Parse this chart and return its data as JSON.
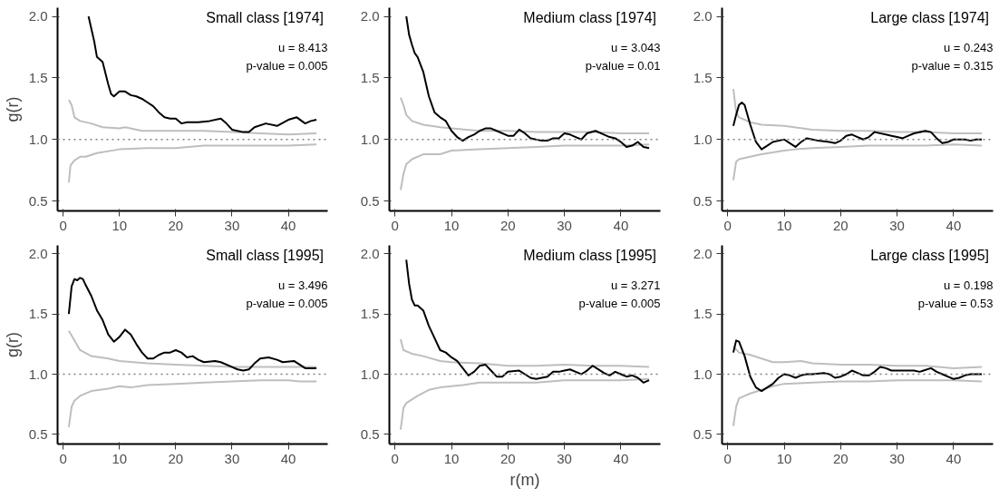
{
  "chart_data": [
    {
      "type": "line",
      "title": "Small class  [1974]",
      "ylabel": "g(r)",
      "annotations": [
        "u = 8.413",
        "p-value = 0.005"
      ],
      "xlim": [
        -1,
        47
      ],
      "ylim": [
        0.42,
        2.07
      ],
      "xticks": [
        0,
        10,
        20,
        30,
        40
      ],
      "yticks": [
        {
          "value": 0.5,
          "label": "0.5"
        },
        {
          "value": 1,
          "label": "1.0"
        },
        {
          "value": 1.5,
          "label": "1.5"
        },
        {
          "value": 2,
          "label": "2.0"
        }
      ],
      "ref_lines": [
        {
          "axis": "y",
          "value": 1,
          "color": "#808080",
          "line_style": "dotted"
        }
      ],
      "series": [
        {
          "color": "#bebebe",
          "x": [
            1,
            1.5,
            2,
            3,
            5,
            7,
            10,
            11,
            14,
            20,
            25,
            30,
            35,
            40,
            45
          ],
          "values": [
            1.32,
            1.28,
            1.18,
            1.15,
            1.13,
            1.1,
            1.09,
            1.1,
            1.07,
            1.07,
            1.07,
            1.06,
            1.05,
            1.04,
            1.05
          ]
        },
        {
          "color": "#bebebe",
          "x": [
            1,
            1.3,
            2,
            3,
            4,
            6,
            10,
            15,
            20,
            25,
            30,
            35,
            40,
            45
          ],
          "values": [
            0.65,
            0.79,
            0.83,
            0.86,
            0.86,
            0.89,
            0.92,
            0.93,
            0.93,
            0.95,
            0.95,
            0.95,
            0.95,
            0.96
          ]
        },
        {
          "color": "#000000",
          "x": [
            4.5,
            5.5,
            6,
            7,
            8,
            8.5,
            9,
            10,
            11,
            12,
            13,
            14,
            15,
            16,
            17,
            18,
            19,
            20,
            21,
            22,
            24,
            26,
            28,
            29,
            30,
            32,
            33,
            34,
            36,
            38,
            40,
            41.5,
            43,
            44,
            45
          ],
          "values": [
            2.0,
            1.8,
            1.67,
            1.63,
            1.45,
            1.37,
            1.35,
            1.39,
            1.39,
            1.36,
            1.35,
            1.33,
            1.3,
            1.27,
            1.22,
            1.18,
            1.17,
            1.17,
            1.13,
            1.14,
            1.14,
            1.15,
            1.17,
            1.13,
            1.08,
            1.06,
            1.06,
            1.1,
            1.13,
            1.11,
            1.16,
            1.18,
            1.13,
            1.15,
            1.16
          ]
        }
      ]
    },
    {
      "type": "line",
      "title": "Medium class  [1974]",
      "annotations": [
        "u = 3.043",
        "p-value = 0.01"
      ],
      "xlim": [
        -1,
        47
      ],
      "ylim": [
        0.42,
        2.07
      ],
      "xticks": [
        0,
        10,
        20,
        30,
        40
      ],
      "yticks": [
        {
          "value": 0.5,
          "label": "0.5"
        },
        {
          "value": 1,
          "label": "1.0"
        },
        {
          "value": 1.5,
          "label": "1.5"
        },
        {
          "value": 2,
          "label": "2.0"
        }
      ],
      "ref_lines": [
        {
          "axis": "y",
          "value": 1,
          "color": "#808080",
          "line_style": "dotted"
        }
      ],
      "series": [
        {
          "color": "#bebebe",
          "x": [
            1,
            1.5,
            2,
            3,
            5,
            8,
            10,
            15,
            20,
            25,
            30,
            35,
            40,
            45
          ],
          "values": [
            1.34,
            1.28,
            1.2,
            1.15,
            1.12,
            1.1,
            1.09,
            1.07,
            1.07,
            1.06,
            1.06,
            1.06,
            1.05,
            1.05
          ]
        },
        {
          "color": "#bebebe",
          "x": [
            1,
            1.5,
            2,
            3,
            5,
            8,
            10,
            15,
            20,
            25,
            30,
            35,
            40,
            45
          ],
          "values": [
            0.59,
            0.72,
            0.8,
            0.84,
            0.88,
            0.88,
            0.91,
            0.92,
            0.93,
            0.94,
            0.95,
            0.95,
            0.95,
            0.96
          ]
        },
        {
          "color": "#000000",
          "x": [
            2,
            2.5,
            3,
            3.5,
            4,
            5,
            6,
            7,
            8,
            9,
            10,
            11,
            12,
            13,
            14,
            15,
            16,
            17,
            18,
            20,
            21,
            22,
            23,
            24,
            26,
            27,
            28,
            29,
            30,
            31,
            32,
            33,
            34,
            35.5,
            37,
            38,
            39,
            40,
            41,
            42,
            43,
            44,
            45
          ],
          "values": [
            2.0,
            1.85,
            1.77,
            1.7,
            1.67,
            1.55,
            1.35,
            1.22,
            1.18,
            1.15,
            1.07,
            1.02,
            0.99,
            1.02,
            1.04,
            1.07,
            1.09,
            1.09,
            1.07,
            1.03,
            1.03,
            1.08,
            1.05,
            1.01,
            0.99,
            0.99,
            1.01,
            1.01,
            1.05,
            1.04,
            1.02,
            1.0,
            1.05,
            1.07,
            1.04,
            1.02,
            1.01,
            0.98,
            0.94,
            0.95,
            0.98,
            0.94,
            0.93
          ]
        }
      ]
    },
    {
      "type": "line",
      "title": "Large class  [1974]",
      "annotations": [
        "u = 0.243",
        "p-value = 0.315"
      ],
      "xlim": [
        -1,
        47
      ],
      "ylim": [
        0.42,
        2.07
      ],
      "xticks": [
        0,
        10,
        20,
        30,
        40
      ],
      "yticks": [
        {
          "value": 0.5,
          "label": "0.5"
        },
        {
          "value": 1,
          "label": "1.0"
        },
        {
          "value": 1.5,
          "label": "1.5"
        },
        {
          "value": 2,
          "label": "2.0"
        }
      ],
      "ref_lines": [
        {
          "axis": "y",
          "value": 1,
          "color": "#808080",
          "line_style": "dotted"
        }
      ],
      "series": [
        {
          "color": "#bebebe",
          "x": [
            1,
            1.5,
            2,
            4,
            6,
            10,
            15,
            20,
            25,
            30,
            35,
            40,
            45
          ],
          "values": [
            1.41,
            1.22,
            1.18,
            1.14,
            1.12,
            1.11,
            1.08,
            1.07,
            1.07,
            1.06,
            1.06,
            1.05,
            1.05
          ]
        },
        {
          "color": "#bebebe",
          "x": [
            1,
            1.5,
            2,
            4,
            6,
            10,
            12,
            15,
            20,
            25,
            30,
            35,
            40,
            45
          ],
          "values": [
            0.67,
            0.82,
            0.84,
            0.86,
            0.88,
            0.91,
            0.92,
            0.93,
            0.94,
            0.95,
            0.95,
            0.95,
            0.96,
            0.95
          ]
        },
        {
          "color": "#000000",
          "x": [
            1,
            1.5,
            2,
            2.5,
            3,
            4,
            5,
            6,
            7,
            8,
            9,
            10,
            11,
            12,
            13,
            14,
            15,
            16,
            18,
            19,
            20,
            21,
            22,
            23,
            24,
            25,
            26,
            28,
            29,
            30,
            31,
            32,
            33,
            35,
            36,
            37,
            38,
            39,
            40,
            42,
            43,
            44,
            45
          ],
          "values": [
            1.11,
            1.2,
            1.28,
            1.3,
            1.28,
            1.12,
            0.98,
            0.92,
            0.95,
            0.98,
            0.99,
            1.0,
            0.97,
            0.94,
            0.98,
            1.01,
            1.0,
            0.99,
            0.98,
            0.97,
            0.99,
            1.03,
            1.04,
            1.02,
            1.0,
            1.02,
            1.06,
            1.04,
            1.03,
            1.02,
            1.01,
            1.03,
            1.05,
            1.07,
            1.06,
            1.01,
            0.97,
            0.98,
            1.0,
            1.0,
            0.99,
            1.0,
            1.0
          ]
        }
      ]
    },
    {
      "type": "line",
      "title": "Small class  [1995]",
      "ylabel": "g(r)",
      "annotations": [
        "u = 3.496",
        "p-value = 0.005"
      ],
      "xlim": [
        -1,
        47
      ],
      "ylim": [
        0.42,
        2.07
      ],
      "xticks": [
        0,
        10,
        20,
        30,
        40
      ],
      "yticks": [
        {
          "value": 0.5,
          "label": "0.5"
        },
        {
          "value": 1,
          "label": "1.0"
        },
        {
          "value": 1.5,
          "label": "1.5"
        },
        {
          "value": 2,
          "label": "2.0"
        }
      ],
      "ref_lines": [
        {
          "axis": "y",
          "value": 1,
          "color": "#808080",
          "line_style": "dotted"
        }
      ],
      "series": [
        {
          "color": "#bebebe",
          "x": [
            1,
            2,
            3,
            5,
            8,
            10,
            15,
            20,
            25,
            30,
            35,
            40,
            45
          ],
          "values": [
            1.36,
            1.28,
            1.2,
            1.15,
            1.13,
            1.11,
            1.09,
            1.08,
            1.07,
            1.06,
            1.06,
            1.06,
            1.06
          ]
        },
        {
          "color": "#bebebe",
          "x": [
            1,
            1.5,
            2,
            3,
            5,
            8,
            10,
            12,
            15,
            20,
            25,
            30,
            35,
            40,
            42,
            45
          ],
          "values": [
            0.56,
            0.73,
            0.78,
            0.82,
            0.86,
            0.88,
            0.9,
            0.89,
            0.91,
            0.92,
            0.93,
            0.94,
            0.95,
            0.95,
            0.94,
            0.94
          ]
        },
        {
          "color": "#000000",
          "x": [
            1,
            1.5,
            2,
            2.5,
            3,
            3.5,
            4,
            5,
            6,
            7,
            8,
            9,
            10,
            11,
            12,
            13,
            14,
            15,
            16,
            17,
            18,
            19,
            20,
            21,
            22,
            23,
            24,
            25,
            27,
            28,
            30,
            31,
            32,
            33,
            34,
            35,
            36.5,
            38,
            39,
            41,
            42,
            43,
            45
          ],
          "values": [
            1.5,
            1.73,
            1.79,
            1.78,
            1.8,
            1.79,
            1.74,
            1.65,
            1.53,
            1.45,
            1.33,
            1.27,
            1.31,
            1.37,
            1.33,
            1.25,
            1.18,
            1.13,
            1.13,
            1.16,
            1.18,
            1.18,
            1.2,
            1.18,
            1.14,
            1.15,
            1.12,
            1.1,
            1.11,
            1.1,
            1.06,
            1.04,
            1.03,
            1.04,
            1.09,
            1.13,
            1.14,
            1.12,
            1.1,
            1.11,
            1.08,
            1.05,
            1.05
          ]
        }
      ]
    },
    {
      "type": "line",
      "title": "Medium class  [1995]",
      "xlabel": "r(m)",
      "annotations": [
        "u = 3.271",
        "p-value = 0.005"
      ],
      "xlim": [
        -1,
        47
      ],
      "ylim": [
        0.42,
        2.07
      ],
      "xticks": [
        0,
        10,
        20,
        30,
        40
      ],
      "yticks": [
        {
          "value": 0.5,
          "label": "0.5"
        },
        {
          "value": 1,
          "label": "1.0"
        },
        {
          "value": 1.5,
          "label": "1.5"
        },
        {
          "value": 2,
          "label": "2.0"
        }
      ],
      "ref_lines": [
        {
          "axis": "y",
          "value": 1,
          "color": "#808080",
          "line_style": "dotted"
        }
      ],
      "series": [
        {
          "color": "#bebebe",
          "x": [
            1,
            1.5,
            3,
            5,
            8,
            10,
            15,
            20,
            25,
            30,
            35,
            40,
            45
          ],
          "values": [
            1.29,
            1.2,
            1.17,
            1.15,
            1.11,
            1.1,
            1.09,
            1.07,
            1.07,
            1.08,
            1.07,
            1.07,
            1.06
          ]
        },
        {
          "color": "#bebebe",
          "x": [
            1,
            1.5,
            2,
            4,
            6,
            8,
            10,
            12,
            15,
            20,
            25,
            30,
            35,
            40,
            45
          ],
          "values": [
            0.54,
            0.72,
            0.76,
            0.82,
            0.87,
            0.89,
            0.9,
            0.91,
            0.93,
            0.93,
            0.93,
            0.95,
            0.95,
            0.95,
            0.96
          ]
        },
        {
          "color": "#000000",
          "x": [
            2,
            2.5,
            3,
            3.5,
            4,
            5,
            6,
            7,
            8,
            9,
            10,
            11,
            12,
            13,
            14,
            15,
            16,
            17,
            18,
            19,
            20,
            22,
            23,
            24,
            25,
            27,
            28,
            29,
            30,
            31,
            32,
            33,
            34,
            35,
            36,
            37,
            38,
            39,
            40,
            41,
            42,
            43,
            44,
            45
          ],
          "values": [
            1.95,
            1.75,
            1.62,
            1.57,
            1.57,
            1.53,
            1.4,
            1.3,
            1.2,
            1.18,
            1.14,
            1.11,
            1.05,
            0.99,
            1.02,
            1.07,
            1.08,
            1.03,
            0.98,
            0.98,
            1.02,
            1.03,
            1.0,
            0.97,
            0.96,
            0.98,
            1.02,
            1.02,
            1.03,
            1.04,
            1.02,
            1.0,
            1.03,
            1.07,
            1.04,
            1.01,
            0.99,
            1.02,
            1.0,
            0.98,
            0.99,
            0.97,
            0.93,
            0.95
          ]
        }
      ]
    },
    {
      "type": "line",
      "title": "Large class  [1995]",
      "annotations": [
        "u = 0.198",
        "p-value = 0.53"
      ],
      "xlim": [
        -1,
        47
      ],
      "ylim": [
        0.42,
        2.07
      ],
      "xticks": [
        0,
        10,
        20,
        30,
        40
      ],
      "yticks": [
        {
          "value": 0.5,
          "label": "0.5"
        },
        {
          "value": 1,
          "label": "1.0"
        },
        {
          "value": 1.5,
          "label": "1.5"
        },
        {
          "value": 2,
          "label": "2.0"
        }
      ],
      "ref_lines": [
        {
          "axis": "y",
          "value": 1,
          "color": "#808080",
          "line_style": "dotted"
        }
      ],
      "series": [
        {
          "color": "#bebebe",
          "x": [
            1,
            2,
            4,
            6,
            8,
            10,
            13,
            15,
            20,
            25,
            30,
            35,
            40,
            45
          ],
          "values": [
            1.23,
            1.18,
            1.16,
            1.13,
            1.1,
            1.1,
            1.11,
            1.09,
            1.08,
            1.08,
            1.07,
            1.07,
            1.05,
            1.06
          ]
        },
        {
          "color": "#bebebe",
          "x": [
            1,
            1.5,
            2,
            4,
            6,
            8,
            10,
            15,
            20,
            25,
            30,
            35,
            40,
            45
          ],
          "values": [
            0.57,
            0.73,
            0.8,
            0.84,
            0.87,
            0.9,
            0.92,
            0.93,
            0.94,
            0.94,
            0.95,
            0.95,
            0.95,
            0.94
          ]
        },
        {
          "color": "#000000",
          "x": [
            1,
            1.5,
            2,
            3,
            4,
            5,
            6,
            7,
            8,
            9,
            10,
            11,
            12,
            13,
            14,
            15,
            17,
            18,
            19,
            20,
            21,
            22,
            23,
            24,
            25,
            26,
            27,
            28,
            29,
            31,
            33,
            34,
            36,
            37,
            38,
            40,
            41,
            42,
            43,
            44,
            45
          ],
          "values": [
            1.18,
            1.28,
            1.27,
            1.15,
            0.98,
            0.89,
            0.86,
            0.89,
            0.92,
            0.97,
            1.0,
            0.99,
            0.97,
            0.99,
            1.0,
            1.0,
            1.01,
            1.0,
            0.97,
            0.98,
            1.0,
            1.03,
            1.01,
            0.99,
            0.99,
            1.02,
            1.06,
            1.05,
            1.03,
            1.03,
            1.03,
            1.02,
            1.05,
            1.02,
            1.0,
            0.96,
            0.97,
            0.99,
            1.0,
            1.0,
            1.0
          ]
        }
      ]
    }
  ]
}
